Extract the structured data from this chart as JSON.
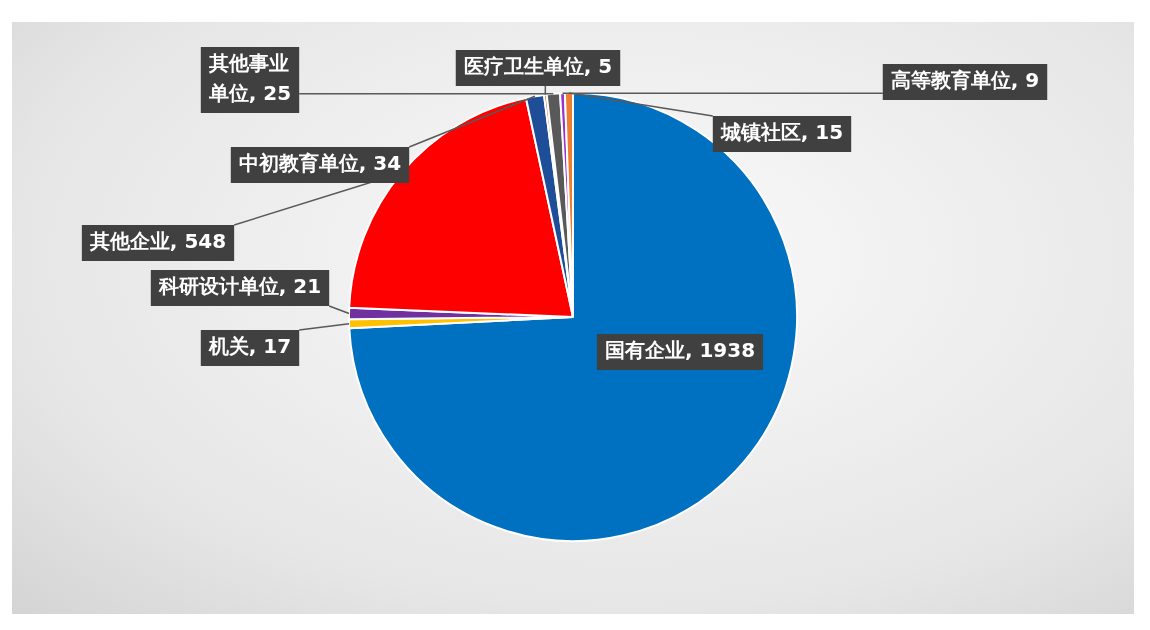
{
  "chart_data": {
    "type": "pie",
    "categories": [
      "国有企业",
      "机关",
      "科研设计单位",
      "其他企业",
      "中初教育单位",
      "医疗卫生单位",
      "其他事业单位",
      "高等教育单位",
      "城镇社区"
    ],
    "values": [
      1938,
      17,
      21,
      548,
      34,
      5,
      25,
      9,
      15
    ],
    "colors": [
      "#0070c0",
      "#ffc000",
      "#7030a0",
      "#ff0000",
      "#1f4e99",
      "#c55a11",
      "#595959",
      "#9933cc",
      "#ed7d31"
    ],
    "value_labels": [
      ", 1938",
      ", 17",
      ", 21",
      ", 548",
      ", 34",
      ", 5",
      ", 25",
      ", 9",
      ", 15"
    ],
    "legend": false
  }
}
